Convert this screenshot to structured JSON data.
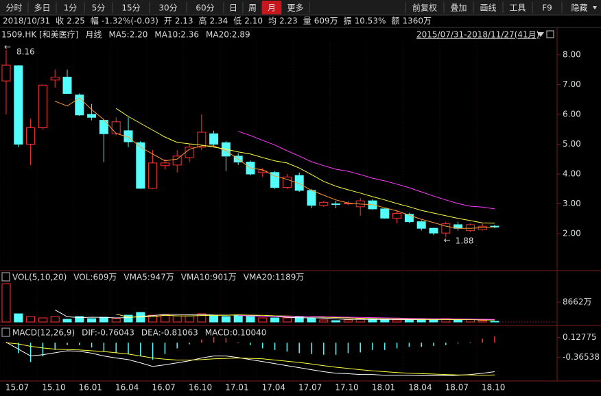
{
  "toolbar": {
    "left": [
      "分时",
      "多日",
      "1分",
      "5分",
      "15分",
      "30分",
      "60分",
      "日",
      "周",
      "月",
      "更多"
    ],
    "active": "月",
    "right": [
      "前复权",
      "叠加",
      "画线",
      "工具",
      "F9",
      "隐藏"
    ]
  },
  "info": {
    "date": "2018/10/31",
    "items": [
      {
        "label": "收",
        "value": "2.25",
        "color": "#19d219"
      },
      {
        "label": "幅",
        "value": "-1.32%(-0.03)",
        "color": "#19d219"
      },
      {
        "label": "开",
        "value": "2.13",
        "color": "#19d219"
      },
      {
        "label": "高",
        "value": "2.34",
        "color": "#ff4040"
      },
      {
        "label": "低",
        "value": "2.10",
        "color": "#19d219"
      },
      {
        "label": "均",
        "value": "2.23",
        "color": "#19d219"
      },
      {
        "label": "量",
        "value": "609万",
        "color": "#e0e0e0"
      },
      {
        "label": "振",
        "value": "10.53%",
        "color": "#e0e0e0"
      },
      {
        "label": "额",
        "value": "1360万",
        "color": "#e0e0e0"
      }
    ]
  },
  "chart_data": [
    {
      "type": "candlestick",
      "title": "1509.HK [和美医疗]",
      "subtitle": "月线",
      "range_label": "2015/07/31-2018/11/27(41月)",
      "categories": [
        "15.07",
        null,
        null,
        "15.10",
        null,
        null,
        "16.01",
        null,
        null,
        "16.04",
        null,
        null,
        "16.07",
        null,
        null,
        "16.10",
        null,
        null,
        "17.01",
        null,
        null,
        "17.04",
        null,
        null,
        "17.07",
        null,
        null,
        "17.10",
        null,
        null,
        "18.01",
        null,
        null,
        "18.04",
        null,
        null,
        "18.07",
        null,
        null,
        "18.10",
        null
      ],
      "open": [
        7.12,
        7.63,
        5.0,
        5.55,
        7.15,
        7.25,
        6.65,
        6.0,
        5.8,
        5.35,
        5.45,
        5.05,
        3.52,
        4.28,
        4.3,
        4.55,
        4.9,
        5.35,
        5.05,
        4.6,
        4.4,
        4.05,
        4.05,
        3.55,
        3.95,
        3.45,
        2.95,
        3.0,
        3.0,
        2.9,
        3.1,
        2.83,
        2.52,
        2.65,
        2.4,
        2.18,
        2.02,
        2.3,
        2.1,
        2.13,
        2.25
      ],
      "high": [
        8.16,
        7.65,
        5.85,
        7.0,
        7.5,
        7.5,
        6.7,
        6.35,
        5.85,
        5.9,
        5.9,
        5.1,
        4.8,
        4.5,
        4.8,
        5.0,
        6.0,
        5.45,
        5.1,
        4.7,
        4.45,
        4.2,
        4.1,
        4.0,
        4.05,
        3.5,
        3.1,
        3.1,
        3.1,
        3.2,
        3.15,
        2.85,
        2.75,
        2.7,
        2.45,
        2.2,
        2.4,
        2.4,
        2.35,
        2.34,
        2.3
      ],
      "low": [
        6.0,
        4.9,
        4.3,
        5.5,
        6.9,
        6.7,
        5.95,
        5.8,
        4.4,
        5.3,
        4.9,
        3.5,
        3.5,
        4.15,
        4.05,
        4.4,
        4.8,
        4.9,
        4.1,
        4.3,
        3.95,
        3.9,
        3.5,
        3.5,
        3.4,
        2.85,
        2.9,
        2.85,
        2.95,
        2.6,
        2.8,
        2.5,
        2.35,
        2.35,
        2.1,
        1.95,
        1.88,
        2.1,
        2.05,
        2.1,
        2.18
      ],
      "close": [
        7.65,
        5.0,
        5.55,
        6.98,
        7.25,
        6.7,
        5.98,
        5.9,
        5.35,
        5.75,
        5.08,
        3.52,
        4.37,
        4.37,
        4.6,
        4.9,
        5.4,
        5.0,
        4.6,
        4.4,
        4.0,
        4.1,
        3.55,
        3.9,
        3.45,
        2.95,
        3.05,
        2.98,
        3.02,
        3.1,
        2.83,
        2.52,
        2.68,
        2.4,
        2.18,
        2.02,
        2.33,
        2.18,
        2.3,
        2.25,
        2.22
      ],
      "up_color": "#ff3232",
      "down_color": "#54fcfc",
      "series": [
        {
          "name": "MA5:2.20",
          "color": "#ff9a2e",
          "values": [
            null,
            null,
            null,
            null,
            6.44,
            6.28,
            6.55,
            6.16,
            5.82,
            5.36,
            5.24,
            4.9,
            4.67,
            4.44,
            4.5,
            4.83,
            4.94,
            4.94,
            4.78,
            4.5,
            4.2,
            4.14,
            3.93,
            3.82,
            3.68,
            3.45,
            3.29,
            3.13,
            3.03,
            2.99,
            2.97,
            2.87,
            2.76,
            2.62,
            2.48,
            2.37,
            2.25,
            2.18,
            2.18,
            2.2,
            2.22
          ]
        },
        {
          "name": "MA10:2.36",
          "color": "#ffff3c",
          "values": [
            null,
            null,
            null,
            null,
            null,
            null,
            null,
            null,
            null,
            6.2,
            5.93,
            5.7,
            5.47,
            5.24,
            5.06,
            5.01,
            4.97,
            4.9,
            4.83,
            4.74,
            4.67,
            4.55,
            4.44,
            4.37,
            4.2,
            3.98,
            3.75,
            3.59,
            3.47,
            3.36,
            3.24,
            3.13,
            3.01,
            2.9,
            2.78,
            2.69,
            2.6,
            2.51,
            2.44,
            2.36,
            2.35
          ]
        },
        {
          "name": "MA20:2.89",
          "color": "#ff3cff",
          "values": [
            null,
            null,
            null,
            null,
            null,
            null,
            null,
            null,
            null,
            null,
            null,
            null,
            null,
            null,
            null,
            null,
            null,
            null,
            null,
            5.43,
            5.29,
            5.13,
            4.97,
            4.78,
            4.6,
            4.41,
            4.28,
            4.16,
            4.09,
            3.98,
            3.86,
            3.77,
            3.66,
            3.54,
            3.4,
            3.26,
            3.13,
            3.01,
            2.92,
            2.89,
            2.83
          ]
        }
      ],
      "annotations": [
        "8.16",
        "1.88"
      ],
      "ylim": [
        0.76,
        8.41
      ],
      "yticks": [
        {
          "value": 2,
          "label": "2.00"
        },
        {
          "value": 3,
          "label": "3.00"
        },
        {
          "value": 4,
          "label": "4.00"
        },
        {
          "value": 5,
          "label": "5.00"
        },
        {
          "value": 6,
          "label": "6.00"
        },
        {
          "value": 7,
          "label": "7.00"
        },
        {
          "value": 8,
          "label": "8.00"
        }
      ]
    },
    {
      "type": "bar",
      "title": "VOL(5,10,20)",
      "value_label": "VOL:609万",
      "values": [
        16700,
        3580,
        2390,
        1790,
        2390,
        1200,
        2390,
        1490,
        2090,
        1490,
        2990,
        4180,
        2990,
        2990,
        2690,
        2690,
        3580,
        2690,
        2390,
        2990,
        2690,
        1790,
        1790,
        1790,
        2090,
        1790,
        900,
        600,
        900,
        1490,
        1490,
        900,
        900,
        1200,
        1200,
        900,
        1490,
        900,
        1200,
        609,
        300
      ],
      "series": [
        {
          "name": "VMA5:947万",
          "color": "#ffffff",
          "values": [
            null,
            null,
            null,
            null,
            5300,
            2300,
            1900,
            2100,
            2000,
            1800,
            1900,
            2500,
            2750,
            3350,
            3370,
            3160,
            3280,
            3080,
            3000,
            3110,
            2880,
            2540,
            2390,
            2070,
            1810,
            1840,
            1690,
            1390,
            1150,
            1200,
            1110,
            1140,
            1150,
            1060,
            1090,
            1100,
            1110,
            1040,
            1070,
            947,
            900
          ]
        },
        {
          "name": "VMA10:901万",
          "color": "#ffff3c",
          "values": [
            null,
            null,
            null,
            null,
            null,
            null,
            null,
            null,
            null,
            3500,
            2100,
            2200,
            2300,
            2900,
            2700,
            2650,
            2800,
            2900,
            2900,
            3100,
            3000,
            2900,
            2700,
            2600,
            2500,
            2350,
            2100,
            1950,
            1800,
            1650,
            1500,
            1450,
            1350,
            1250,
            1200,
            1150,
            1100,
            1080,
            1060,
            901,
            880
          ]
        },
        {
          "name": "VMA20:1189万",
          "color": "#ff3cff",
          "values": [
            null,
            null,
            null,
            null,
            null,
            null,
            null,
            null,
            null,
            null,
            null,
            null,
            null,
            null,
            null,
            null,
            null,
            null,
            null,
            2800,
            2650,
            2550,
            2500,
            2450,
            2400,
            2350,
            2300,
            2200,
            2100,
            2000,
            1900,
            1800,
            1700,
            1600,
            1500,
            1450,
            1400,
            1350,
            1300,
            1189,
            1150
          ]
        }
      ],
      "ylim": [
        0,
        16750
      ],
      "yticks": [
        {
          "value": 8662,
          "label": "8662万"
        }
      ]
    },
    {
      "type": "macd",
      "title": "MACD(12,26,9)",
      "value_label": "MACD:0.10040",
      "up_color": "#ff3232",
      "down_color": "#54fcfc",
      "values": [
        0.02,
        -0.26,
        -0.48,
        -0.34,
        -0.18,
        -0.06,
        -0.06,
        -0.12,
        -0.22,
        -0.26,
        -0.28,
        -0.34,
        -0.42,
        -0.28,
        -0.14,
        -0.04,
        0.08,
        0.14,
        0.12,
        0.02,
        -0.06,
        -0.14,
        -0.18,
        -0.22,
        -0.26,
        -0.28,
        -0.3,
        -0.3,
        -0.26,
        -0.24,
        -0.18,
        -0.18,
        -0.14,
        -0.1,
        -0.1,
        -0.08,
        -0.06,
        -0.02,
        0.02,
        0.1004,
        0.16
      ],
      "series": [
        {
          "name": "DIF:-0.76043",
          "color": "#ffffff",
          "values": [
            0.01,
            -0.16,
            -0.33,
            -0.3,
            -0.25,
            -0.2,
            -0.21,
            -0.26,
            -0.33,
            -0.38,
            -0.42,
            -0.5,
            -0.59,
            -0.55,
            -0.5,
            -0.45,
            -0.38,
            -0.33,
            -0.33,
            -0.37,
            -0.42,
            -0.47,
            -0.52,
            -0.57,
            -0.62,
            -0.67,
            -0.72,
            -0.76,
            -0.77,
            -0.79,
            -0.79,
            -0.81,
            -0.81,
            -0.81,
            -0.82,
            -0.82,
            -0.82,
            -0.81,
            -0.79,
            -0.76043,
            -0.72
          ]
        },
        {
          "name": "DEA:-0.81063",
          "color": "#ffff3c",
          "values": [
            0.0,
            -0.03,
            -0.09,
            -0.13,
            -0.16,
            -0.17,
            -0.18,
            -0.2,
            -0.22,
            -0.25,
            -0.28,
            -0.33,
            -0.38,
            -0.41,
            -0.43,
            -0.43,
            -0.42,
            -0.4,
            -0.39,
            -0.38,
            -0.39,
            -0.4,
            -0.43,
            -0.46,
            -0.49,
            -0.53,
            -0.57,
            -0.61,
            -0.64,
            -0.67,
            -0.7,
            -0.72,
            -0.74,
            -0.76,
            -0.77,
            -0.78,
            -0.79,
            -0.8,
            -0.8,
            -0.81063,
            -0.8
          ]
        }
      ],
      "ylim": [
        -0.95,
        0.14
      ],
      "yticks": [
        0.12775,
        -0.36538
      ]
    }
  ]
}
